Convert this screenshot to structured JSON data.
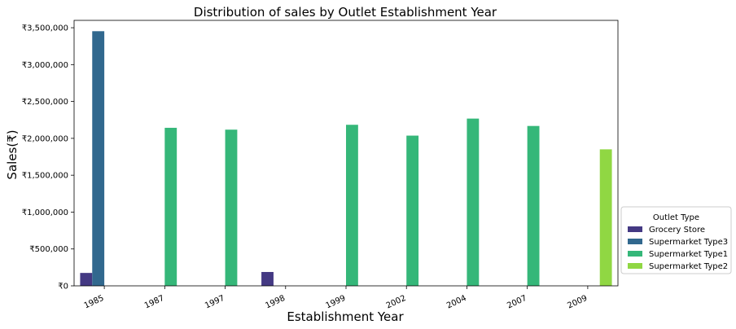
{
  "chart_data": {
    "type": "bar",
    "title": "Distribution of sales by Outlet Establishment Year",
    "xlabel": "Establishment Year",
    "ylabel": "Sales(₹)",
    "categories": [
      "1985",
      "1987",
      "1997",
      "1998",
      "1999",
      "2002",
      "2004",
      "2007",
      "2009"
    ],
    "ylim": [
      0,
      3600000
    ],
    "yticks": [
      0,
      500000,
      1000000,
      1500000,
      2000000,
      2500000,
      3000000,
      3500000
    ],
    "ytick_labels": [
      "₹0",
      "₹500,000",
      "₹1,000,000",
      "₹1,500,000",
      "₹2,000,000",
      "₹2,500,000",
      "₹3,000,000",
      "₹3,500,000"
    ],
    "grid": false,
    "legend": {
      "title": "Outlet Type",
      "placement": "right-bottom-outside"
    },
    "series": [
      {
        "name": "Grocery Store",
        "color": "#443983",
        "values": [
          175000,
          null,
          null,
          188000,
          null,
          null,
          null,
          null,
          null
        ]
      },
      {
        "name": "Supermarket Type3",
        "color": "#31688e",
        "values": [
          3453000,
          null,
          null,
          null,
          null,
          null,
          null,
          null,
          null
        ]
      },
      {
        "name": "Supermarket Type1",
        "color": "#35b779",
        "values": [
          null,
          2143000,
          2118000,
          null,
          2184000,
          2037000,
          2268000,
          2168000,
          null
        ]
      },
      {
        "name": "Supermarket Type2",
        "color": "#90d743",
        "values": [
          null,
          null,
          null,
          null,
          null,
          null,
          null,
          null,
          1851000
        ]
      }
    ]
  }
}
